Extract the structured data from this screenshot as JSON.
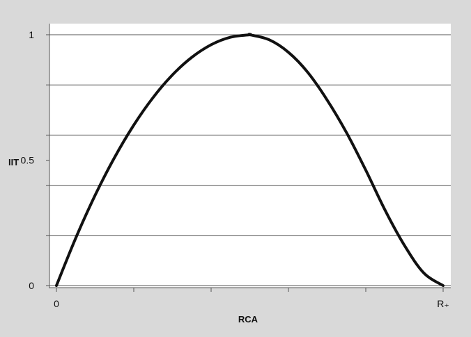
{
  "chart_data": {
    "type": "line",
    "title": "",
    "xlabel": "RCA",
    "ylabel": "IIT",
    "xlim": [
      0,
      1
    ],
    "ylim": [
      0,
      1
    ],
    "x_ticks": [
      {
        "value": 0,
        "label": "0"
      },
      {
        "value": 0.2,
        "label": ""
      },
      {
        "value": 0.4,
        "label": ""
      },
      {
        "value": 0.6,
        "label": ""
      },
      {
        "value": 0.8,
        "label": ""
      },
      {
        "value": 1,
        "label": "R₊"
      }
    ],
    "y_ticks": [
      {
        "value": 0,
        "label": "0"
      },
      {
        "value": 0.2,
        "label": ""
      },
      {
        "value": 0.4,
        "label": ""
      },
      {
        "value": 0.5,
        "label": "0.5"
      },
      {
        "value": 0.6,
        "label": ""
      },
      {
        "value": 0.8,
        "label": ""
      },
      {
        "value": 1,
        "label": "1"
      }
    ],
    "gridlines_y": [
      0,
      0.2,
      0.4,
      0.6,
      0.8,
      1
    ],
    "grid": true,
    "series": [
      {
        "x": [
          0,
          0.05,
          0.1,
          0.15,
          0.2,
          0.25,
          0.3,
          0.35,
          0.4,
          0.45,
          0.5,
          0.5,
          0.55,
          0.6,
          0.65,
          0.7,
          0.75,
          0.8,
          0.85,
          0.9,
          0.95,
          1
        ],
        "y": [
          0,
          0.19,
          0.36,
          0.51,
          0.64,
          0.75,
          0.84,
          0.91,
          0.96,
          0.99,
          1,
          1,
          0.98,
          0.93,
          0.85,
          0.74,
          0.61,
          0.46,
          0.3,
          0.16,
          0.05,
          0
        ],
        "color": "#111111"
      }
    ]
  }
}
